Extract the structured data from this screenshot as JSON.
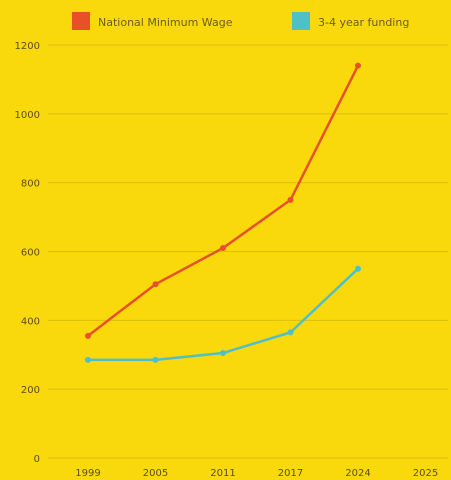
{
  "chart_data": {
    "type": "line",
    "categories": [
      "1999",
      "2005",
      "2011",
      "2017",
      "2024",
      "2025"
    ],
    "series": [
      {
        "name": "National Minimum Wage",
        "color": "#E8502A",
        "values": [
          355,
          505,
          610,
          750,
          1140,
          null
        ]
      },
      {
        "name": "3-4 year funding",
        "color": "#4FBFC8",
        "values": [
          285,
          285,
          305,
          365,
          550,
          null
        ]
      }
    ],
    "y_ticks": [
      "0",
      "200",
      "400",
      "600",
      "800",
      "1000",
      "1200"
    ],
    "ylim": [
      0,
      1200
    ],
    "grid": true,
    "legend_position": "top",
    "background_color": "#F9D90C"
  }
}
